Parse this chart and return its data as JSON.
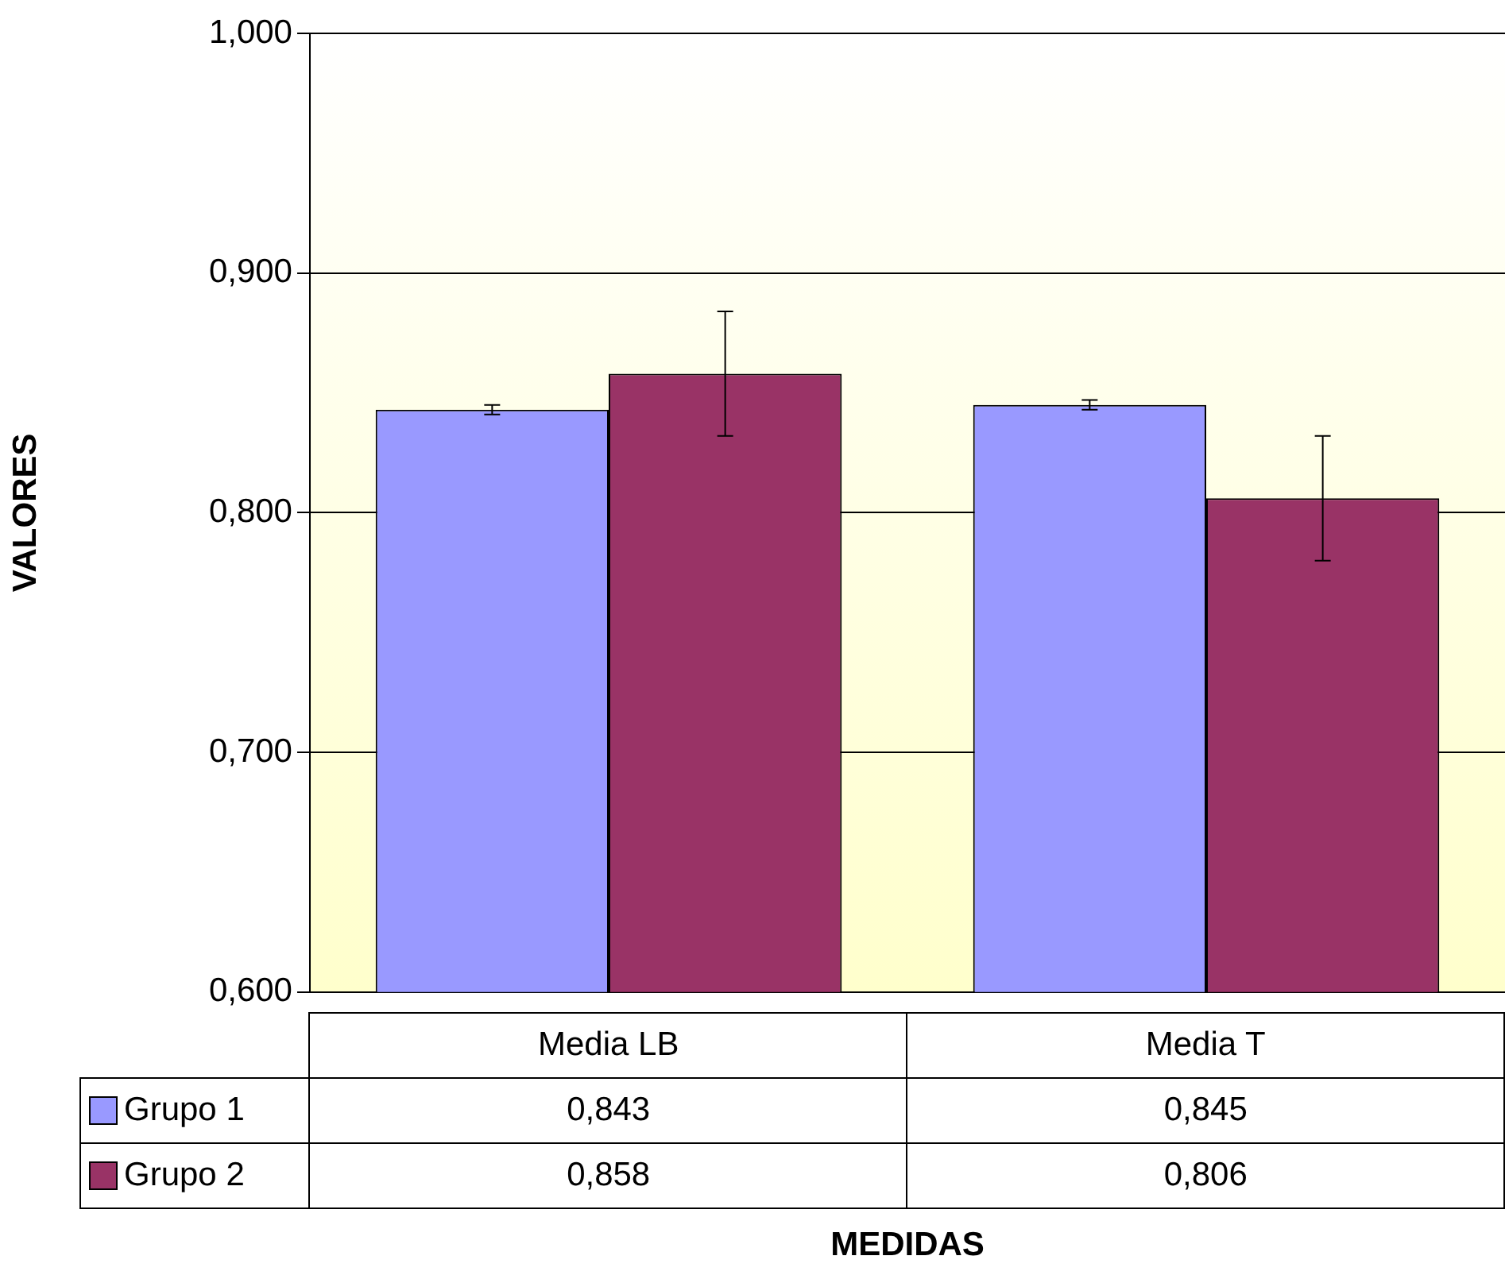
{
  "chart_data": {
    "type": "bar",
    "xlabel": "MEDIDAS",
    "ylabel": "VALORES",
    "categories": [
      "Media LB",
      "Media T"
    ],
    "series": [
      {
        "name": "Grupo 1",
        "color": "#9999ff",
        "values": [
          0.843,
          0.845
        ],
        "errors": [
          0.002,
          0.002
        ],
        "value_labels": [
          "0,843",
          "0,845"
        ]
      },
      {
        "name": "Grupo 2",
        "color": "#993366",
        "values": [
          0.858,
          0.806
        ],
        "errors": [
          0.026,
          0.026
        ],
        "value_labels": [
          "0,858",
          "0,806"
        ]
      }
    ],
    "ylim": [
      0.6,
      1.0
    ],
    "yticks": [
      {
        "value": 0.6,
        "label": "0,600"
      },
      {
        "value": 0.7,
        "label": "0,700"
      },
      {
        "value": 0.8,
        "label": "0,800"
      },
      {
        "value": 0.9,
        "label": "0,900"
      },
      {
        "value": 1.0,
        "label": "1,000"
      }
    ],
    "grid": "y",
    "legend": "bottom"
  }
}
